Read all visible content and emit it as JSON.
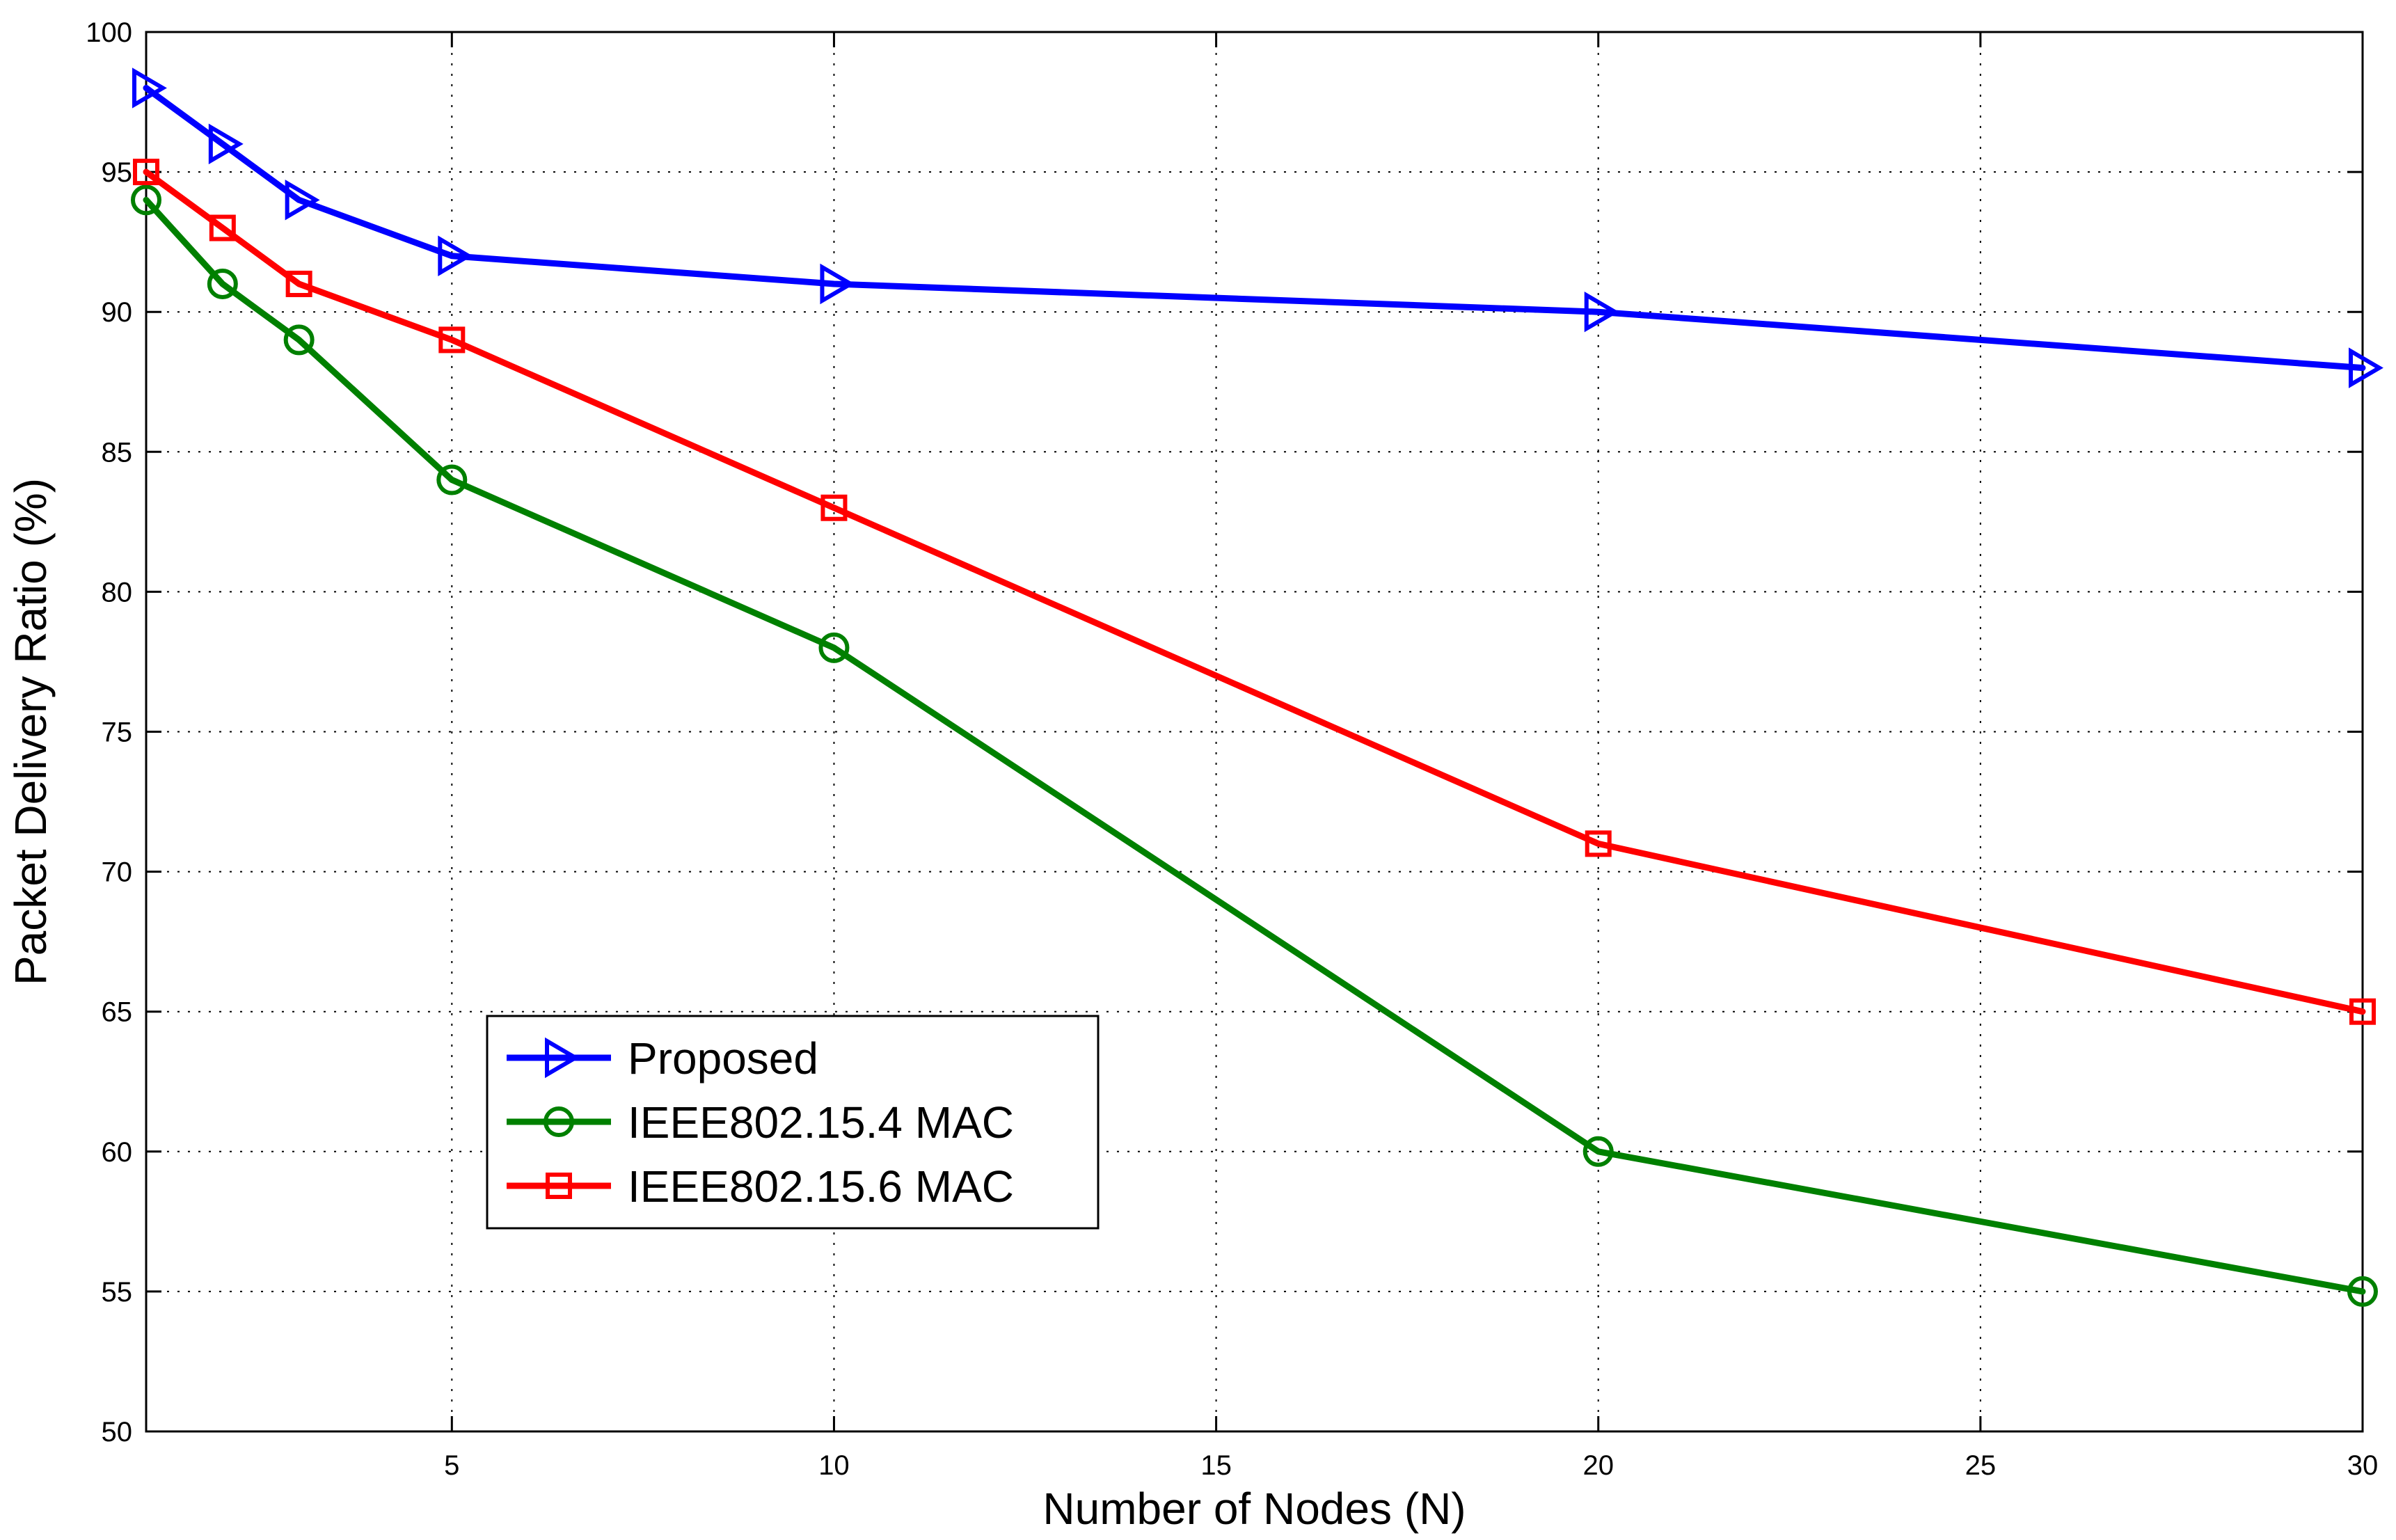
{
  "chart_data": {
    "type": "line",
    "title": "",
    "xlabel": "Number of Nodes (N)",
    "ylabel": "Packet Delivery Ratio (%)",
    "xlim": [
      1,
      30
    ],
    "ylim": [
      50,
      100
    ],
    "xticks": [
      5,
      10,
      15,
      20,
      25,
      30
    ],
    "yticks": [
      50,
      55,
      60,
      65,
      70,
      75,
      80,
      85,
      90,
      95,
      100
    ],
    "grid": true,
    "legend_position": "lower-left",
    "series": [
      {
        "name": "Proposed",
        "color": "#0000ff",
        "marker": "triangle-right",
        "x": [
          1,
          2,
          3,
          5,
          10,
          20,
          30
        ],
        "y": [
          98,
          96,
          94,
          92,
          91,
          90,
          88
        ]
      },
      {
        "name": "IEEE802.15.4 MAC",
        "color": "#008000",
        "marker": "circle",
        "x": [
          1,
          2,
          3,
          5,
          10,
          20,
          30
        ],
        "y": [
          94,
          91,
          89,
          84,
          78,
          60,
          55
        ]
      },
      {
        "name": "IEEE802.15.6 MAC",
        "color": "#ff0000",
        "marker": "square",
        "x": [
          1,
          2,
          3,
          5,
          10,
          20,
          30
        ],
        "y": [
          95,
          93,
          91,
          89,
          83,
          71,
          65
        ]
      }
    ]
  }
}
